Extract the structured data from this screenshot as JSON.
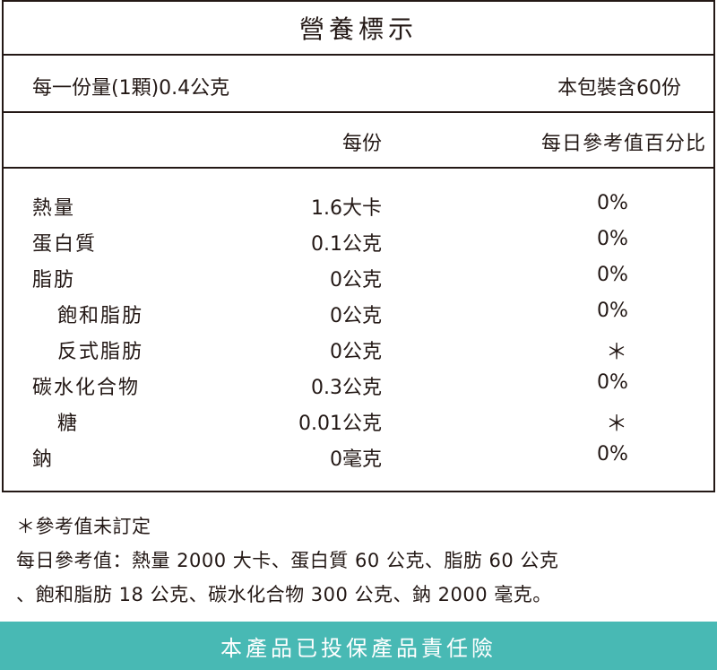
{
  "title": "營養標示",
  "serving": {
    "size": "每一份量(1顆)0.4公克",
    "per_package": "本包裝含60份"
  },
  "header": {
    "per_serving": "每份",
    "daily_value": "每日參考值百分比"
  },
  "nutrients": [
    {
      "name": "熱量",
      "amount": "1.6大卡",
      "dv": "0%"
    },
    {
      "name": "蛋白質",
      "amount": "0.1公克",
      "dv": "0%"
    },
    {
      "name": "脂肪",
      "amount": "0公克",
      "dv": "0%"
    },
    {
      "name": "飽和脂肪",
      "amount": "0公克",
      "dv": "0%"
    },
    {
      "name": "反式脂肪",
      "amount": "0公克",
      "dv": "＊"
    },
    {
      "name": "碳水化合物",
      "amount": "0.3公克",
      "dv": "0%"
    },
    {
      "name": "糖",
      "amount": "0.01公克",
      "dv": "＊"
    },
    {
      "name": "鈉",
      "amount": "0毫克",
      "dv": "0%"
    }
  ],
  "notes": {
    "footnote": "＊參考值未訂定",
    "daily_ref_line1": "每日參考值：熱量 2000 大卡、蛋白質 60 公克、脂肪 60 公克",
    "daily_ref_line2": "、飽和脂肪 18 公克、碳水化合物 300 公克、鈉 2000 毫克。"
  },
  "footer": {
    "label": "本產品已投保產品責任險",
    "color": "#48b9b4"
  }
}
